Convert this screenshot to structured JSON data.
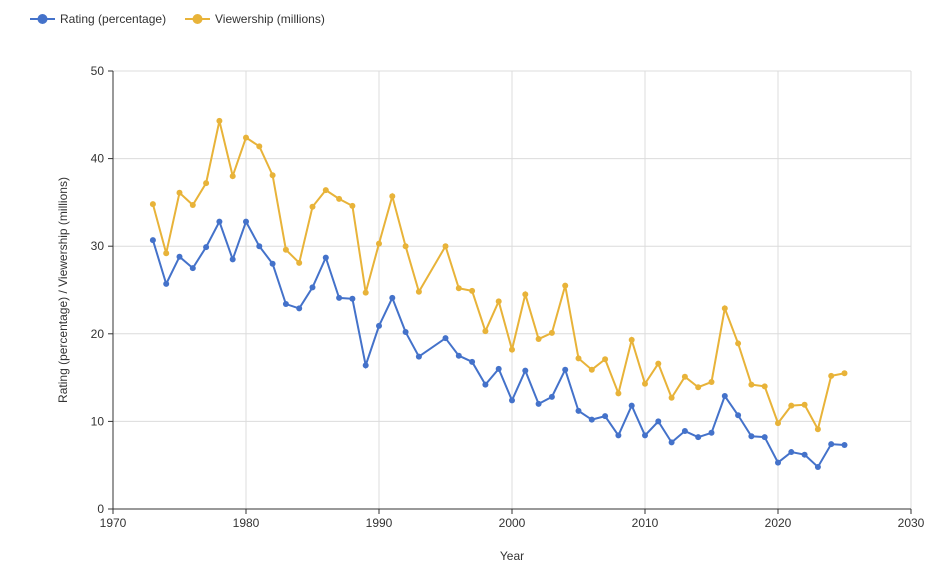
{
  "chart_data": {
    "type": "line",
    "title": "",
    "xlabel": "Year",
    "ylabel": "Rating (percentage) / Viewership (millions)",
    "xlim": [
      1970,
      2030
    ],
    "ylim": [
      0,
      50
    ],
    "xticks": [
      1970,
      1980,
      1990,
      2000,
      2010,
      2020,
      2030
    ],
    "yticks": [
      0,
      10,
      20,
      30,
      40,
      50
    ],
    "grid": true,
    "legend_position": "top-left",
    "x": [
      1973,
      1974,
      1975,
      1976,
      1977,
      1978,
      1979,
      1980,
      1981,
      1982,
      1983,
      1984,
      1985,
      1986,
      1987,
      1988,
      1989,
      1990,
      1991,
      1992,
      1993,
      1995,
      1996,
      1997,
      1998,
      1999,
      2000,
      2001,
      2002,
      2003,
      2004,
      2005,
      2006,
      2007,
      2008,
      2009,
      2010,
      2011,
      2012,
      2013,
      2014,
      2015,
      2016,
      2017,
      2018,
      2019,
      2020,
      2021,
      2022,
      2023,
      2024,
      2025
    ],
    "series": [
      {
        "name": "Rating (percentage)",
        "color": "#4472ca",
        "values": [
          30.7,
          25.7,
          28.8,
          27.5,
          29.9,
          32.8,
          28.5,
          32.8,
          30.0,
          28.0,
          23.4,
          22.9,
          25.3,
          28.7,
          24.1,
          24.0,
          16.4,
          20.9,
          24.1,
          20.2,
          17.4,
          19.5,
          17.5,
          16.8,
          14.2,
          16.0,
          12.4,
          15.8,
          12.0,
          12.8,
          15.9,
          11.2,
          10.2,
          10.6,
          8.4,
          11.8,
          8.4,
          10.0,
          7.6,
          8.9,
          8.2,
          8.7,
          12.9,
          10.7,
          8.3,
          8.2,
          5.3,
          6.5,
          6.2,
          4.8,
          7.4,
          7.3
        ]
      },
      {
        "name": "Viewership (millions)",
        "color": "#e8b339",
        "values": [
          34.8,
          29.2,
          36.1,
          34.7,
          37.2,
          44.3,
          38.0,
          42.4,
          41.4,
          38.1,
          29.6,
          28.1,
          34.5,
          36.4,
          35.4,
          34.6,
          24.7,
          30.3,
          35.7,
          30.0,
          24.8,
          30.0,
          25.2,
          24.9,
          20.3,
          23.7,
          18.2,
          24.5,
          19.4,
          20.1,
          25.5,
          17.2,
          15.9,
          17.1,
          13.2,
          19.3,
          14.3,
          16.6,
          12.7,
          15.1,
          13.9,
          14.5,
          22.9,
          18.9,
          14.2,
          14.0,
          9.8,
          11.8,
          11.9,
          9.1,
          15.2,
          15.5
        ]
      }
    ]
  }
}
